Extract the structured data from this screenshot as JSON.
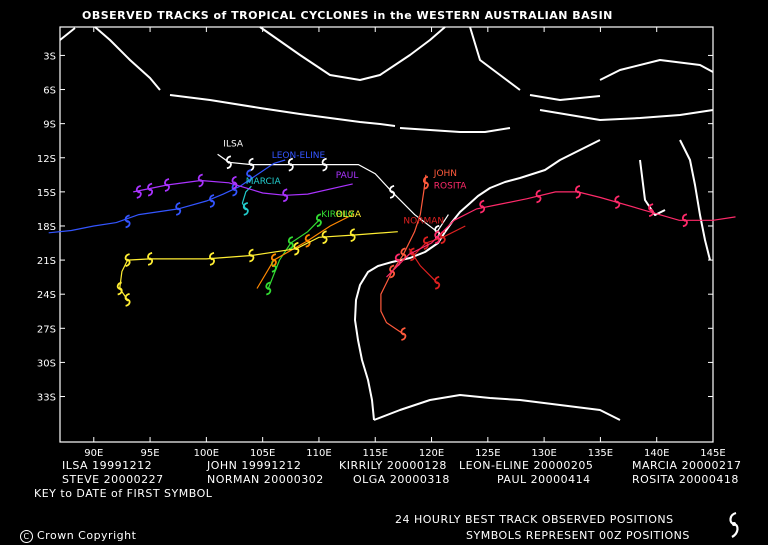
{
  "title": "OBSERVED TRACKS of TROPICAL CYCLONES in the WESTERN AUSTRALIAN BASIN",
  "axes": {
    "lat_labels": [
      "3S",
      "6S",
      "9S",
      "12S",
      "15S",
      "18S",
      "21S",
      "24S",
      "27S",
      "30S",
      "33S"
    ],
    "lon_labels": [
      "90E",
      "95E",
      "100E",
      "105E",
      "110E",
      "115E",
      "120E",
      "125E",
      "130E",
      "135E",
      "140E",
      "145E"
    ]
  },
  "legend": [
    {
      "name": "ILSA",
      "date": "19991212"
    },
    {
      "name": "JOHN",
      "date": "19991212"
    },
    {
      "name": "KIRRILY",
      "date": "20000128"
    },
    {
      "name": "LEON-ELINE",
      "date": "20000205"
    },
    {
      "name": "MARCIA",
      "date": "20000217"
    },
    {
      "name": "STEVE",
      "date": "20000227"
    },
    {
      "name": "NORMAN",
      "date": "20000302"
    },
    {
      "name": "OLGA",
      "date": "20000318"
    },
    {
      "name": "PAUL",
      "date": "20000414"
    },
    {
      "name": "ROSITA",
      "date": "20000418"
    }
  ],
  "key_text": "KEY to DATE of FIRST SYMBOL",
  "copyright": "Crown Copyright",
  "footer_line1": "24 HOURLY BEST TRACK OBSERVED POSITIONS",
  "footer_line2": "SYMBOLS REPRESENT 00Z POSITIONS",
  "map_data": {
    "tracks": [
      {
        "label": "ILSA",
        "color": "#ffffff",
        "pts": [
          [
            101,
            -11.7
          ],
          [
            102,
            -12.4
          ],
          [
            104,
            -12.6
          ],
          [
            107.5,
            -12.6
          ],
          [
            110.5,
            -12.6
          ],
          [
            113.5,
            -12.6
          ],
          [
            115,
            -13.4
          ],
          [
            116.5,
            -15
          ],
          [
            118.5,
            -17
          ],
          [
            120.5,
            -18.5
          ],
          [
            121.5,
            -17
          ]
        ],
        "markers": [
          [
            102,
            -12.4
          ],
          [
            104,
            -12.6
          ],
          [
            107.5,
            -12.6
          ],
          [
            110.5,
            -12.6
          ],
          [
            116.5,
            -15
          ],
          [
            120.5,
            -18.5
          ]
        ],
        "label_at": [
          101.5,
          -11.0
        ]
      },
      {
        "label": "JOHN",
        "color": "#ff5a3c",
        "pts": [
          [
            119.5,
            -13.5
          ],
          [
            119.3,
            -15
          ],
          [
            119,
            -17
          ],
          [
            118.5,
            -18.5
          ],
          [
            117.5,
            -20.5
          ],
          [
            116.5,
            -22
          ],
          [
            115.5,
            -24
          ],
          [
            115.5,
            -25.5
          ],
          [
            116,
            -26.5
          ],
          [
            117.5,
            -27.5
          ]
        ],
        "markers": [
          [
            119.5,
            -14.2
          ],
          [
            117.5,
            -20.5
          ],
          [
            116.5,
            -22
          ],
          [
            117.5,
            -27.5
          ]
        ],
        "label_at": [
          120.2,
          -13.6
        ]
      },
      {
        "label": "KIRRILY",
        "color": "#33dd33",
        "pts": [
          [
            110,
            -17.5
          ],
          [
            109,
            -18.5
          ],
          [
            107.5,
            -19.5
          ],
          [
            106.5,
            -21
          ],
          [
            105.5,
            -23.5
          ]
        ],
        "markers": [
          [
            110,
            -17.5
          ],
          [
            107.5,
            -19.5
          ],
          [
            106,
            -21.5
          ],
          [
            105.5,
            -23.5
          ]
        ],
        "label_at": [
          110.2,
          -17.2
        ]
      },
      {
        "label": "LEON-ELINE",
        "color": "#3355ff",
        "pts": [
          [
            86,
            -18.6
          ],
          [
            88,
            -18.4
          ],
          [
            90,
            -18
          ],
          [
            92,
            -17.7
          ],
          [
            94,
            -17
          ],
          [
            97.5,
            -16.5
          ],
          [
            100,
            -15.8
          ],
          [
            101.5,
            -15.2
          ],
          [
            103,
            -14.5
          ],
          [
            104.5,
            -13.5
          ],
          [
            106,
            -12.5
          ],
          [
            107,
            -12.2
          ]
        ],
        "markers": [
          [
            93,
            -17.6
          ],
          [
            97.5,
            -16.5
          ],
          [
            100.5,
            -15.8
          ],
          [
            102.5,
            -14.8
          ],
          [
            103.8,
            -13.6
          ]
        ],
        "label_at": [
          105.8,
          -12.0
        ]
      },
      {
        "label": "MARCIA",
        "color": "#22cccc",
        "pts": [
          [
            104,
            -14.5
          ],
          [
            103.5,
            -15
          ],
          [
            103.2,
            -16
          ],
          [
            103.5,
            -16.5
          ]
        ],
        "markers": [
          [
            103.5,
            -16.5
          ]
        ],
        "label_at": [
          103.5,
          -14.3
        ]
      },
      {
        "label": "STEVE",
        "color": "#ff8800",
        "pts": [
          [
            113,
            -17
          ],
          [
            111,
            -18
          ],
          [
            109,
            -19.3
          ],
          [
            106,
            -21
          ],
          [
            104.5,
            -23.5
          ]
        ],
        "markers": [
          [
            109,
            -19.3
          ],
          [
            106,
            -21
          ]
        ],
        "label_at": null
      },
      {
        "label": "NORMAN",
        "color": "#dd2020",
        "pts": [
          [
            123,
            -18
          ],
          [
            121,
            -19
          ],
          [
            119.5,
            -19.5
          ],
          [
            118.5,
            -20.5
          ],
          [
            118,
            -20
          ],
          [
            119,
            -21.5
          ],
          [
            120,
            -22.5
          ],
          [
            120.5,
            -23
          ]
        ],
        "markers": [
          [
            121,
            -19
          ],
          [
            119.5,
            -19.5
          ],
          [
            118.3,
            -20.5
          ],
          [
            120.5,
            -23
          ]
        ],
        "label_at": [
          117.5,
          -17.8
        ]
      },
      {
        "label": "OLGA",
        "color": "#ffee33",
        "pts": [
          [
            93,
            -24.5
          ],
          [
            92.3,
            -23.5
          ],
          [
            92.5,
            -22
          ],
          [
            93,
            -21
          ],
          [
            95,
            -20.9
          ],
          [
            100,
            -20.9
          ],
          [
            104,
            -20.6
          ],
          [
            108,
            -20
          ],
          [
            110,
            -19
          ],
          [
            113,
            -18.8
          ],
          [
            117,
            -18.5
          ]
        ],
        "markers": [
          [
            93,
            -24.5
          ],
          [
            92.3,
            -23.5
          ],
          [
            93,
            -21
          ],
          [
            95,
            -20.9
          ],
          [
            100.5,
            -20.9
          ],
          [
            104,
            -20.6
          ],
          [
            108,
            -20
          ],
          [
            110.5,
            -19
          ],
          [
            113,
            -18.8
          ]
        ],
        "label_at": [
          111.5,
          -17.2
        ]
      },
      {
        "label": "PAUL",
        "color": "#aa33ff",
        "pts": [
          [
            113,
            -14.3
          ],
          [
            109,
            -15.2
          ],
          [
            107,
            -15.3
          ],
          [
            105,
            -15.1
          ],
          [
            102,
            -14.2
          ],
          [
            99.5,
            -14
          ],
          [
            96.5,
            -14.4
          ],
          [
            94.5,
            -14.8
          ],
          [
            93.5,
            -15
          ]
        ],
        "markers": [
          [
            107,
            -15.3
          ],
          [
            102.5,
            -14.2
          ],
          [
            99.5,
            -14
          ],
          [
            96.5,
            -14.4
          ],
          [
            95,
            -14.8
          ],
          [
            94,
            -15
          ]
        ],
        "label_at": [
          111.5,
          -13.8
        ]
      },
      {
        "label": "ROSITA",
        "color": "#ff2a6a",
        "pts": [
          [
            116,
            -22.5
          ],
          [
            118,
            -20.5
          ],
          [
            120,
            -19.5
          ],
          [
            122,
            -17.5
          ],
          [
            124,
            -16.5
          ],
          [
            126,
            -16.1
          ],
          [
            128.5,
            -15.6
          ],
          [
            131,
            -15
          ],
          [
            133,
            -15
          ],
          [
            135,
            -15.5
          ],
          [
            138.5,
            -16.5
          ],
          [
            142,
            -17.5
          ],
          [
            145,
            -17.5
          ],
          [
            147,
            -17.2
          ]
        ],
        "markers": [
          [
            117,
            -21
          ],
          [
            120.5,
            -19
          ],
          [
            124.5,
            -16.3
          ],
          [
            129.5,
            -15.4
          ],
          [
            133,
            -15
          ],
          [
            136.5,
            -15.9
          ],
          [
            139.5,
            -16.6
          ],
          [
            142.5,
            -17.5
          ]
        ],
        "label_at": [
          120.2,
          -14.7
        ]
      }
    ]
  }
}
